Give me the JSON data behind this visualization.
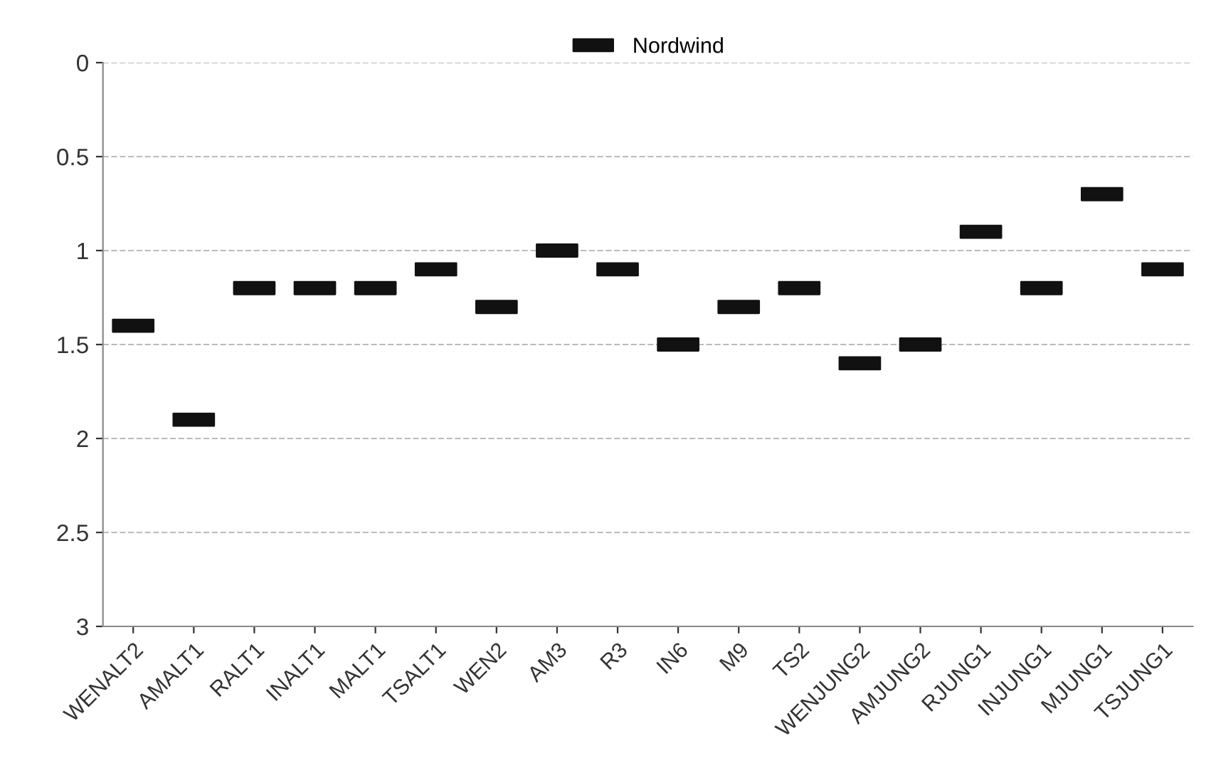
{
  "chart_data": {
    "type": "scatter",
    "categories": [
      "WENALT2",
      "AMALT1",
      "RALT1",
      "INALT1",
      "MALT1",
      "TSALT1",
      "WEN2",
      "AM3",
      "R3",
      "IN6",
      "M9",
      "TS2",
      "WENJUNG2",
      "AMJUNG2",
      "RJUNG1",
      "INJUNG1",
      "MJUNG1",
      "TSJUNG1"
    ],
    "series": [
      {
        "name": "Nordwind",
        "color": "#111111",
        "values": [
          1.4,
          1.9,
          1.2,
          1.2,
          1.2,
          1.1,
          1.3,
          1.0,
          1.1,
          1.5,
          1.3,
          1.2,
          1.6,
          1.5,
          0.9,
          1.2,
          0.7,
          1.1
        ]
      }
    ],
    "ylim": [
      3,
      0
    ],
    "yticks": [
      0,
      0.5,
      1,
      1.5,
      2,
      2.5,
      3
    ],
    "grid": "y",
    "legend": "top"
  }
}
